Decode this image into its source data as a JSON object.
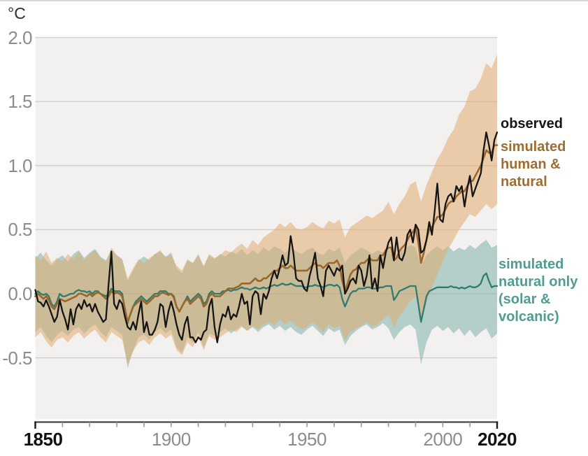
{
  "chart_data": {
    "type": "line",
    "unit_label": "°C",
    "xlim": [
      1850,
      2020
    ],
    "ylim": [
      -0.98,
      2.0
    ],
    "grid": true,
    "legend_position": "right",
    "y_ticks": [
      {
        "value": 2.0,
        "label": "2.0"
      },
      {
        "value": 1.5,
        "label": "1.5"
      },
      {
        "value": 1.0,
        "label": "1.0"
      },
      {
        "value": 0.5,
        "label": "0.5"
      },
      {
        "value": 0.0,
        "label": "0.0"
      },
      {
        "value": -0.5,
        "label": "-0.5"
      }
    ],
    "x_ticks": [
      {
        "year": 1850,
        "label": "1850",
        "emphasis": true,
        "dx": 11
      },
      {
        "year": 1900,
        "label": "1900",
        "emphasis": false,
        "dx": 0
      },
      {
        "year": 1950,
        "label": "1950",
        "emphasis": false,
        "dx": 0
      },
      {
        "year": 2000,
        "label": "2000",
        "emphasis": false,
        "dx": 0
      },
      {
        "year": 2020,
        "label": "2020",
        "emphasis": true,
        "dx": 0
      }
    ],
    "x_minor_ticks": {
      "start": 1860,
      "end": 2010,
      "step": 10
    },
    "colors": {
      "plot_bg": "#f2f1ef",
      "gridline": "#d2d1cf",
      "axis": "#454545",
      "minor_tick": "#979797",
      "band_human_natural": "rgba(225,168,105,0.52)",
      "band_natural": "rgba(118,174,163,0.50)",
      "line_observed": "#151515",
      "line_human_natural": "#9a662a",
      "line_natural": "#2f7c71"
    },
    "legend": [
      {
        "label": "observed",
        "color": "#151515"
      },
      {
        "label": "simulated human & natural",
        "color": "#a06d30"
      },
      {
        "label": "simulated natural only (solar & volcanic)",
        "color": "#4f9d92"
      }
    ],
    "series": [
      {
        "name": "observed",
        "x_start": 1850,
        "x_step": 1,
        "values": [
          0.03,
          -0.06,
          -0.07,
          -0.1,
          -0.05,
          -0.1,
          -0.16,
          -0.22,
          -0.18,
          -0.05,
          -0.14,
          -0.2,
          -0.28,
          -0.12,
          -0.24,
          -0.12,
          -0.08,
          -0.12,
          -0.05,
          -0.1,
          -0.08,
          -0.14,
          -0.08,
          -0.14,
          -0.18,
          -0.22,
          -0.2,
          0.08,
          0.33,
          -0.08,
          -0.12,
          -0.05,
          -0.08,
          -0.18,
          -0.26,
          -0.28,
          -0.22,
          -0.28,
          -0.16,
          -0.06,
          -0.3,
          -0.22,
          -0.32,
          -0.32,
          -0.28,
          -0.22,
          -0.08,
          -0.1,
          -0.26,
          -0.14,
          -0.06,
          -0.14,
          -0.24,
          -0.32,
          -0.36,
          -0.24,
          -0.18,
          -0.34,
          -0.34,
          -0.38,
          -0.34,
          -0.36,
          -0.3,
          -0.28,
          -0.1,
          -0.04,
          -0.26,
          -0.38,
          -0.24,
          -0.16,
          -0.18,
          -0.1,
          -0.2,
          -0.16,
          -0.18,
          -0.1,
          0.0,
          -0.08,
          -0.06,
          -0.24,
          -0.02,
          0.02,
          0.0,
          -0.16,
          0.0,
          -0.04,
          0.02,
          0.12,
          0.18,
          0.12,
          0.2,
          0.3,
          0.22,
          0.24,
          0.45,
          0.32,
          0.12,
          0.1,
          0.1,
          0.04,
          0.02,
          0.14,
          0.22,
          0.32,
          0.12,
          0.06,
          -0.02,
          0.18,
          0.22,
          0.18,
          0.14,
          0.2,
          0.18,
          0.22,
          0.0,
          0.04,
          0.1,
          0.12,
          0.08,
          0.22,
          0.18,
          0.06,
          0.14,
          0.3,
          0.04,
          0.12,
          0.02,
          0.3,
          0.2,
          0.32,
          0.4,
          0.44,
          0.26,
          0.44,
          0.28,
          0.26,
          0.32,
          0.46,
          0.5,
          0.4,
          0.54,
          0.5,
          0.32,
          0.34,
          0.42,
          0.56,
          0.46,
          0.64,
          0.86,
          0.58,
          0.56,
          0.7,
          0.76,
          0.78,
          0.72,
          0.84,
          0.8,
          0.84,
          0.68,
          0.82,
          0.92,
          0.76,
          0.82,
          0.88,
          0.94,
          1.12,
          1.26,
          1.16,
          1.04,
          1.2,
          1.26
        ]
      },
      {
        "name": "simulated human & natural",
        "x_start": 1850,
        "x_step": 1,
        "values": [
          -0.02,
          0.0,
          -0.02,
          -0.04,
          -0.02,
          -0.05,
          -0.1,
          -0.12,
          -0.08,
          -0.04,
          -0.05,
          -0.06,
          -0.05,
          -0.04,
          -0.03,
          -0.02,
          0.0,
          0.0,
          -0.01,
          -0.02,
          0.0,
          -0.02,
          0.0,
          0.01,
          0.0,
          -0.02,
          -0.04,
          -0.02,
          0.02,
          0.0,
          0.01,
          0.0,
          -0.02,
          -0.12,
          -0.22,
          -0.16,
          -0.1,
          -0.08,
          -0.06,
          -0.04,
          -0.06,
          -0.08,
          -0.06,
          -0.04,
          -0.02,
          -0.02,
          0.0,
          0.01,
          0.0,
          -0.01,
          0.0,
          -0.03,
          -0.1,
          -0.14,
          -0.1,
          -0.06,
          -0.04,
          -0.08,
          -0.06,
          -0.04,
          -0.02,
          -0.04,
          -0.1,
          -0.08,
          -0.02,
          0.0,
          -0.02,
          -0.02,
          -0.02,
          0.0,
          0.02,
          0.04,
          0.04,
          0.04,
          0.05,
          0.06,
          0.08,
          0.08,
          0.08,
          0.08,
          0.1,
          0.12,
          0.1,
          0.1,
          0.12,
          0.12,
          0.14,
          0.16,
          0.18,
          0.18,
          0.2,
          0.22,
          0.2,
          0.2,
          0.22,
          0.2,
          0.18,
          0.18,
          0.18,
          0.18,
          0.18,
          0.2,
          0.22,
          0.24,
          0.22,
          0.22,
          0.2,
          0.22,
          0.24,
          0.24,
          0.24,
          0.26,
          0.22,
          0.1,
          0.02,
          0.08,
          0.15,
          0.18,
          0.19,
          0.22,
          0.24,
          0.24,
          0.26,
          0.28,
          0.26,
          0.26,
          0.26,
          0.3,
          0.3,
          0.34,
          0.36,
          0.36,
          0.26,
          0.28,
          0.33,
          0.36,
          0.38,
          0.42,
          0.46,
          0.48,
          0.52,
          0.4,
          0.24,
          0.32,
          0.42,
          0.5,
          0.52,
          0.56,
          0.6,
          0.6,
          0.62,
          0.66,
          0.7,
          0.72,
          0.72,
          0.76,
          0.78,
          0.8,
          0.8,
          0.84,
          0.88,
          0.88,
          0.92,
          0.96,
          1.0,
          1.06,
          1.12,
          1.1,
          1.1,
          1.16,
          1.16
        ],
        "band": {
          "x_start": 1850,
          "x_step": 2,
          "upper": [
            0.3,
            0.26,
            0.33,
            0.24,
            0.28,
            0.25,
            0.31,
            0.27,
            0.33,
            0.26,
            0.31,
            0.34,
            0.28,
            0.25,
            0.36,
            0.3,
            0.27,
            0.12,
            0.2,
            0.27,
            0.24,
            0.28,
            0.31,
            0.34,
            0.28,
            0.31,
            0.22,
            0.18,
            0.27,
            0.24,
            0.3,
            0.22,
            0.31,
            0.28,
            0.3,
            0.34,
            0.32,
            0.36,
            0.39,
            0.35,
            0.42,
            0.38,
            0.44,
            0.47,
            0.5,
            0.55,
            0.52,
            0.56,
            0.51,
            0.5,
            0.52,
            0.56,
            0.53,
            0.51,
            0.57,
            0.55,
            0.58,
            0.44,
            0.52,
            0.55,
            0.58,
            0.61,
            0.59,
            0.62,
            0.65,
            0.72,
            0.62,
            0.7,
            0.76,
            0.85,
            0.88,
            0.72,
            0.85,
            0.95,
            1.05,
            1.12,
            1.22,
            1.28,
            1.4,
            1.46,
            1.58,
            1.6,
            1.68,
            1.8,
            1.76,
            1.87
          ],
          "lower": [
            -0.34,
            -0.3,
            -0.37,
            -0.42,
            -0.36,
            -0.34,
            -0.38,
            -0.33,
            -0.3,
            -0.35,
            -0.31,
            -0.28,
            -0.34,
            -0.38,
            -0.3,
            -0.33,
            -0.36,
            -0.55,
            -0.45,
            -0.38,
            -0.36,
            -0.4,
            -0.34,
            -0.31,
            -0.35,
            -0.32,
            -0.44,
            -0.48,
            -0.38,
            -0.42,
            -0.34,
            -0.44,
            -0.33,
            -0.36,
            -0.34,
            -0.31,
            -0.28,
            -0.3,
            -0.26,
            -0.29,
            -0.25,
            -0.28,
            -0.24,
            -0.22,
            -0.25,
            -0.2,
            -0.24,
            -0.21,
            -0.25,
            -0.28,
            -0.26,
            -0.22,
            -0.26,
            -0.3,
            -0.24,
            -0.27,
            -0.25,
            -0.36,
            -0.3,
            -0.27,
            -0.25,
            -0.22,
            -0.26,
            -0.24,
            -0.2,
            -0.16,
            -0.26,
            -0.18,
            -0.12,
            -0.06,
            -0.02,
            -0.2,
            -0.08,
            0.05,
            0.15,
            0.25,
            0.35,
            0.42,
            0.5,
            0.56,
            0.62,
            0.6,
            0.65,
            0.7,
            0.66,
            0.7
          ]
        }
      },
      {
        "name": "simulated natural only (solar & volcanic)",
        "x_start": 1850,
        "x_step": 1,
        "values": [
          0.0,
          0.02,
          0.0,
          -0.01,
          0.0,
          -0.02,
          -0.08,
          -0.1,
          -0.06,
          0.0,
          -0.02,
          -0.02,
          -0.01,
          0.0,
          0.0,
          0.02,
          0.03,
          0.02,
          0.02,
          0.01,
          0.02,
          0.0,
          0.02,
          0.02,
          0.0,
          -0.01,
          -0.02,
          0.0,
          0.04,
          0.02,
          0.02,
          0.02,
          0.0,
          -0.12,
          -0.23,
          -0.16,
          -0.1,
          -0.06,
          -0.04,
          -0.02,
          -0.04,
          -0.06,
          -0.04,
          -0.02,
          0.0,
          0.0,
          0.02,
          0.02,
          0.02,
          0.0,
          0.0,
          -0.02,
          -0.1,
          -0.14,
          -0.1,
          -0.06,
          -0.02,
          -0.06,
          -0.04,
          -0.02,
          0.0,
          -0.02,
          -0.08,
          -0.06,
          0.0,
          0.02,
          0.0,
          0.0,
          0.0,
          0.02,
          0.02,
          0.03,
          0.02,
          0.03,
          0.03,
          0.04,
          0.05,
          0.04,
          0.04,
          0.03,
          0.04,
          0.05,
          0.04,
          0.04,
          0.05,
          0.04,
          0.05,
          0.06,
          0.07,
          0.06,
          0.07,
          0.08,
          0.07,
          0.07,
          0.08,
          0.07,
          0.06,
          0.06,
          0.06,
          0.05,
          0.05,
          0.06,
          0.06,
          0.07,
          0.06,
          0.06,
          0.05,
          0.06,
          0.07,
          0.07,
          0.06,
          0.07,
          0.05,
          -0.04,
          -0.1,
          -0.05,
          0.0,
          0.02,
          0.02,
          0.04,
          0.04,
          0.04,
          0.05,
          0.05,
          0.04,
          0.04,
          0.04,
          0.05,
          0.05,
          0.06,
          0.06,
          0.06,
          -0.05,
          -0.02,
          0.02,
          0.03,
          0.04,
          0.05,
          0.06,
          0.06,
          0.06,
          -0.08,
          -0.22,
          -0.12,
          -0.02,
          0.02,
          0.03,
          0.04,
          0.05,
          0.05,
          0.05,
          0.05,
          0.05,
          0.06,
          0.05,
          0.05,
          0.04,
          0.05,
          0.04,
          0.05,
          0.06,
          0.05,
          0.05,
          0.06,
          0.08,
          0.14,
          0.16,
          0.1,
          0.05,
          0.06,
          0.06
        ],
        "band": {
          "x_start": 1850,
          "x_step": 2,
          "upper": [
            0.28,
            0.32,
            0.26,
            0.22,
            0.27,
            0.3,
            0.25,
            0.31,
            0.34,
            0.28,
            0.32,
            0.35,
            0.29,
            0.26,
            0.34,
            0.3,
            0.27,
            0.1,
            0.18,
            0.26,
            0.29,
            0.26,
            0.31,
            0.33,
            0.29,
            0.32,
            0.2,
            0.16,
            0.26,
            0.24,
            0.31,
            0.21,
            0.3,
            0.27,
            0.31,
            0.29,
            0.33,
            0.31,
            0.35,
            0.3,
            0.34,
            0.31,
            0.36,
            0.33,
            0.37,
            0.35,
            0.32,
            0.36,
            0.33,
            0.31,
            0.34,
            0.36,
            0.32,
            0.3,
            0.35,
            0.33,
            0.36,
            0.24,
            0.3,
            0.33,
            0.36,
            0.34,
            0.31,
            0.34,
            0.32,
            0.36,
            0.26,
            0.32,
            0.35,
            0.38,
            0.36,
            0.22,
            0.3,
            0.34,
            0.37,
            0.34,
            0.37,
            0.33,
            0.36,
            0.34,
            0.38,
            0.35,
            0.39,
            0.42,
            0.36,
            0.38
          ],
          "lower": [
            -0.3,
            -0.26,
            -0.33,
            -0.38,
            -0.32,
            -0.29,
            -0.33,
            -0.28,
            -0.26,
            -0.31,
            -0.27,
            -0.24,
            -0.3,
            -0.34,
            -0.26,
            -0.29,
            -0.32,
            -0.58,
            -0.44,
            -0.34,
            -0.32,
            -0.36,
            -0.3,
            -0.27,
            -0.31,
            -0.28,
            -0.42,
            -0.46,
            -0.34,
            -0.38,
            -0.3,
            -0.42,
            -0.31,
            -0.33,
            -0.3,
            -0.27,
            -0.31,
            -0.28,
            -0.25,
            -0.29,
            -0.26,
            -0.3,
            -0.26,
            -0.24,
            -0.28,
            -0.25,
            -0.29,
            -0.26,
            -0.3,
            -0.32,
            -0.28,
            -0.25,
            -0.29,
            -0.33,
            -0.27,
            -0.3,
            -0.28,
            -0.4,
            -0.33,
            -0.29,
            -0.26,
            -0.24,
            -0.28,
            -0.26,
            -0.23,
            -0.27,
            -0.36,
            -0.3,
            -0.26,
            -0.24,
            -0.28,
            -0.55,
            -0.38,
            -0.28,
            -0.25,
            -0.29,
            -0.26,
            -0.31,
            -0.27,
            -0.33,
            -0.28,
            -0.34,
            -0.3,
            -0.27,
            -0.35,
            -0.31
          ]
        }
      }
    ]
  }
}
